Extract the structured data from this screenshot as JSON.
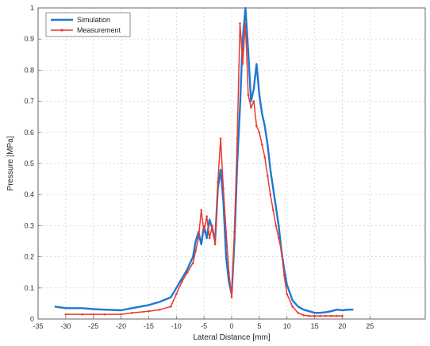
{
  "chart_data": {
    "type": "line",
    "title": "",
    "xlabel": "Lateral Distance [mm]",
    "ylabel": "Pressure [MPa]",
    "xlim": [
      -35,
      35
    ],
    "ylim": [
      0,
      1
    ],
    "grid": true,
    "legend_position": "top-left",
    "x_ticks": [
      -35,
      -30,
      -25,
      -20,
      -15,
      -10,
      -5,
      0,
      5,
      10,
      15,
      20,
      25
    ],
    "y_ticks": [
      0,
      0.1,
      0.2,
      0.3,
      0.4,
      0.5,
      0.6,
      0.7,
      0.8,
      0.9,
      1
    ],
    "series": [
      {
        "name": "Simulation",
        "color": "#1f77d4",
        "x": [
          -32,
          -30,
          -27,
          -25,
          -23,
          -20,
          -18,
          -15,
          -13,
          -11,
          -10,
          -9,
          -8,
          -7,
          -6.5,
          -6,
          -5.5,
          -5,
          -4.5,
          -4,
          -3.5,
          -3,
          -2.5,
          -2,
          -1.5,
          -1,
          -0.5,
          0,
          0.5,
          1,
          1.5,
          2,
          2.5,
          3,
          3.5,
          4,
          4.5,
          5,
          5.5,
          6,
          6.5,
          7,
          7.5,
          8,
          8.5,
          9,
          9.5,
          10,
          11,
          12,
          13,
          14,
          15,
          16,
          17,
          18,
          19,
          20,
          21,
          22
        ],
        "values": [
          0.04,
          0.035,
          0.035,
          0.032,
          0.03,
          0.028,
          0.035,
          0.045,
          0.055,
          0.07,
          0.1,
          0.13,
          0.16,
          0.2,
          0.25,
          0.28,
          0.24,
          0.3,
          0.26,
          0.32,
          0.29,
          0.25,
          0.42,
          0.48,
          0.38,
          0.2,
          0.12,
          0.08,
          0.25,
          0.5,
          0.68,
          0.9,
          1.0,
          0.86,
          0.7,
          0.74,
          0.82,
          0.72,
          0.66,
          0.62,
          0.56,
          0.48,
          0.42,
          0.36,
          0.3,
          0.22,
          0.16,
          0.11,
          0.06,
          0.04,
          0.03,
          0.025,
          0.02,
          0.02,
          0.022,
          0.025,
          0.03,
          0.028,
          0.03,
          0.03
        ]
      },
      {
        "name": "Measurement",
        "color": "#e8392f",
        "x": [
          -30,
          -27,
          -25,
          -23,
          -20,
          -18,
          -15,
          -13,
          -11,
          -10,
          -9,
          -8,
          -7,
          -6.5,
          -6,
          -5.5,
          -5,
          -4.5,
          -4,
          -3.5,
          -3,
          -2.5,
          -2,
          -1.5,
          -1,
          -0.5,
          0,
          0.5,
          1,
          1.5,
          2,
          2.5,
          3,
          3.5,
          4,
          4.5,
          5,
          5.5,
          6,
          6.5,
          7,
          7.5,
          8,
          8.5,
          9,
          9.5,
          10,
          11,
          12,
          13,
          14,
          15,
          16,
          17,
          18,
          19,
          20
        ],
        "values": [
          0.015,
          0.015,
          0.015,
          0.015,
          0.015,
          0.02,
          0.025,
          0.03,
          0.04,
          0.08,
          0.12,
          0.15,
          0.18,
          0.22,
          0.26,
          0.35,
          0.28,
          0.33,
          0.26,
          0.3,
          0.24,
          0.44,
          0.58,
          0.42,
          0.28,
          0.15,
          0.07,
          0.28,
          0.58,
          0.95,
          0.82,
          0.95,
          0.72,
          0.68,
          0.7,
          0.62,
          0.6,
          0.56,
          0.52,
          0.46,
          0.4,
          0.35,
          0.3,
          0.26,
          0.22,
          0.14,
          0.08,
          0.04,
          0.02,
          0.012,
          0.01,
          0.01,
          0.01,
          0.01,
          0.01,
          0.01,
          0.01
        ]
      }
    ]
  }
}
